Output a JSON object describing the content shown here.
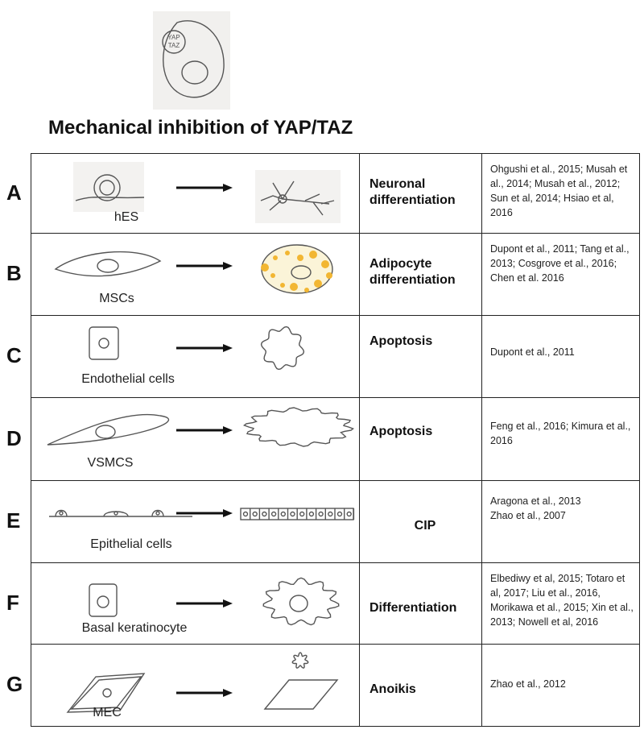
{
  "header": {
    "icon_lines": [
      "YAP",
      "TAZ"
    ],
    "title": "Mechanical inhibition of YAP/TAZ"
  },
  "table": {
    "rows": [
      {
        "letter": "A",
        "cell": "hES",
        "outcome": "Neuronal differentiation",
        "refs": [
          "Ohgushi et al., 2015; Musah et al., 2014; Musah et al., 2012; Sun et al, 2014; Hsiao et al, 2016"
        ]
      },
      {
        "letter": "B",
        "cell": "MSCs",
        "outcome": "Adipocyte differentiation",
        "refs": [
          "Dupont et al., 2011; Tang et al., 2013; Cosgrove et al., 2016; Chen et al. 2016"
        ]
      },
      {
        "letter": "C",
        "cell": "Endothelial cells",
        "outcome": "Apoptosis",
        "refs": [
          "Dupont et al., 2011"
        ]
      },
      {
        "letter": "D",
        "cell": "VSMCS",
        "outcome": "Apoptosis",
        "refs": [
          "Feng et al., 2016; Kimura et al., 2016"
        ]
      },
      {
        "letter": "E",
        "cell": "Epithelial cells",
        "outcome": "CIP",
        "refs": [
          "Aragona et al., 2013",
          "Zhao et al., 2007"
        ]
      },
      {
        "letter": "F",
        "cell": "Basal keratinocyte",
        "outcome": "Differentiation",
        "refs": [
          "Elbediwy et al, 2015; Totaro et al, 2017; Liu et al., 2016, Morikawa et al., 2015; Xin et al., 2013; Nowell et al, 2016"
        ]
      },
      {
        "letter": "G",
        "cell": "MEC",
        "outcome": "Anoikis",
        "refs": [
          "Zhao et al., 2012"
        ]
      }
    ]
  }
}
